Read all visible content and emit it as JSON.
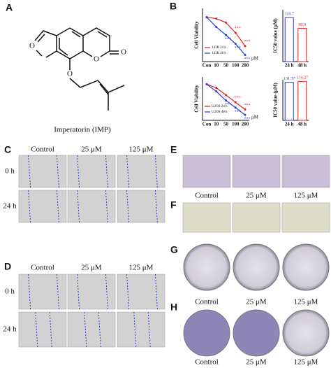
{
  "panels": {
    "A": {
      "label": "A",
      "atoms": [
        "O",
        "O",
        "O",
        "O"
      ],
      "caption": "Imperatorin (IMP)"
    },
    "B": {
      "label": "B"
    },
    "C": {
      "label": "C",
      "columns": [
        "Control",
        "25 μM",
        "125 μM"
      ],
      "rows": [
        "0 h",
        "24 h"
      ]
    },
    "D": {
      "label": "D",
      "columns": [
        "Control",
        "25 μM",
        "125 μM"
      ],
      "rows": [
        "0 h",
        "24 h"
      ]
    },
    "E": {
      "label": "E"
    },
    "F": {
      "label": "F",
      "columns": [
        "Control",
        "25 μM",
        "125 μM"
      ]
    },
    "G": {
      "label": "G",
      "columns": [
        "Control",
        "25 μM",
        "125 μM"
      ]
    },
    "H": {
      "label": "H",
      "columns": [
        "Control",
        "25 μM",
        "125 μM"
      ]
    }
  },
  "chart_data": [
    {
      "type": "line",
      "ylabel": "Cell Viability",
      "xlabel": "μM",
      "categories": [
        "Con",
        "10",
        "50",
        "100",
        "200"
      ],
      "ylim": [
        0,
        120
      ],
      "legend": "lower left",
      "series": [
        {
          "name": "143B 24 h",
          "color": "#e02020",
          "values": [
            100,
            97,
            88,
            65,
            35
          ]
        },
        {
          "name": "143B 48 h",
          "color": "#2b3bd6",
          "values": [
            100,
            78,
            60,
            40,
            15
          ]
        }
      ],
      "annotations": [
        "***",
        "***",
        "***",
        "***",
        "***"
      ]
    },
    {
      "type": "bar",
      "ylabel": "IC50 value (μM)",
      "categories": [
        "24 h",
        "48 h"
      ],
      "values": [
        118.7,
        90
      ],
      "value_labels": [
        "118.7",
        "90.0"
      ],
      "colors": [
        "#2b3bd6",
        "#e02020"
      ],
      "ylim": [
        0,
        140
      ]
    },
    {
      "type": "line",
      "ylabel": "Cell Viability",
      "xlabel": "μM",
      "categories": [
        "Con",
        "10",
        "50",
        "100",
        "200"
      ],
      "ylim": [
        0,
        120
      ],
      "legend": "lower left",
      "series": [
        {
          "name": "U2OS 24 h",
          "color": "#e02020",
          "values": [
            100,
            90,
            70,
            50,
            30
          ]
        },
        {
          "name": "U2OS 48 h",
          "color": "#2b3bd6",
          "values": [
            100,
            80,
            55,
            35,
            15
          ]
        }
      ],
      "annotations": [
        "***",
        "***",
        "***",
        "***",
        "***"
      ]
    },
    {
      "type": "bar",
      "ylabel": "IC50 value (μM)",
      "categories": [
        "24 h",
        "48 h"
      ],
      "values": [
        131.37,
        134.27
      ],
      "colors": [
        "#2b3bd6",
        "#e02020"
      ],
      "ylim": [
        0,
        140
      ]
    }
  ]
}
